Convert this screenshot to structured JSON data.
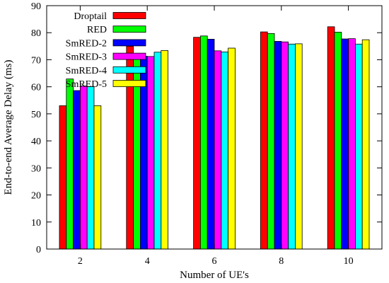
{
  "chart_data": {
    "type": "bar",
    "title": "",
    "xlabel": "Number of UE's",
    "ylabel": "End-to-end Average Delay (ms)",
    "categories": [
      "2",
      "4",
      "6",
      "8",
      "10"
    ],
    "ylim": [
      0,
      90
    ],
    "yticks": [
      0,
      10,
      20,
      30,
      40,
      50,
      60,
      70,
      80,
      90
    ],
    "grid": false,
    "legend_position": "top-right",
    "series": [
      {
        "name": "Droptail",
        "color": "#ff0000",
        "values": [
          53.0,
          75.0,
          78.3,
          80.3,
          82.2
        ]
      },
      {
        "name": "RED",
        "color": "#00ff00",
        "values": [
          62.9,
          72.0,
          78.8,
          79.7,
          80.2
        ]
      },
      {
        "name": "SmRED-2",
        "color": "#0000ff",
        "values": [
          58.6,
          71.3,
          77.6,
          76.8,
          77.7
        ]
      },
      {
        "name": "SmRED-3",
        "color": "#ff00ff",
        "values": [
          60.3,
          71.2,
          73.3,
          76.6,
          77.8
        ]
      },
      {
        "name": "SmRED-4",
        "color": "#00ffff",
        "values": [
          60.1,
          72.8,
          72.9,
          75.8,
          75.8
        ]
      },
      {
        "name": "SmRED-5",
        "color": "#ffff00",
        "values": [
          53.0,
          73.4,
          74.3,
          75.9,
          77.4
        ]
      }
    ]
  }
}
